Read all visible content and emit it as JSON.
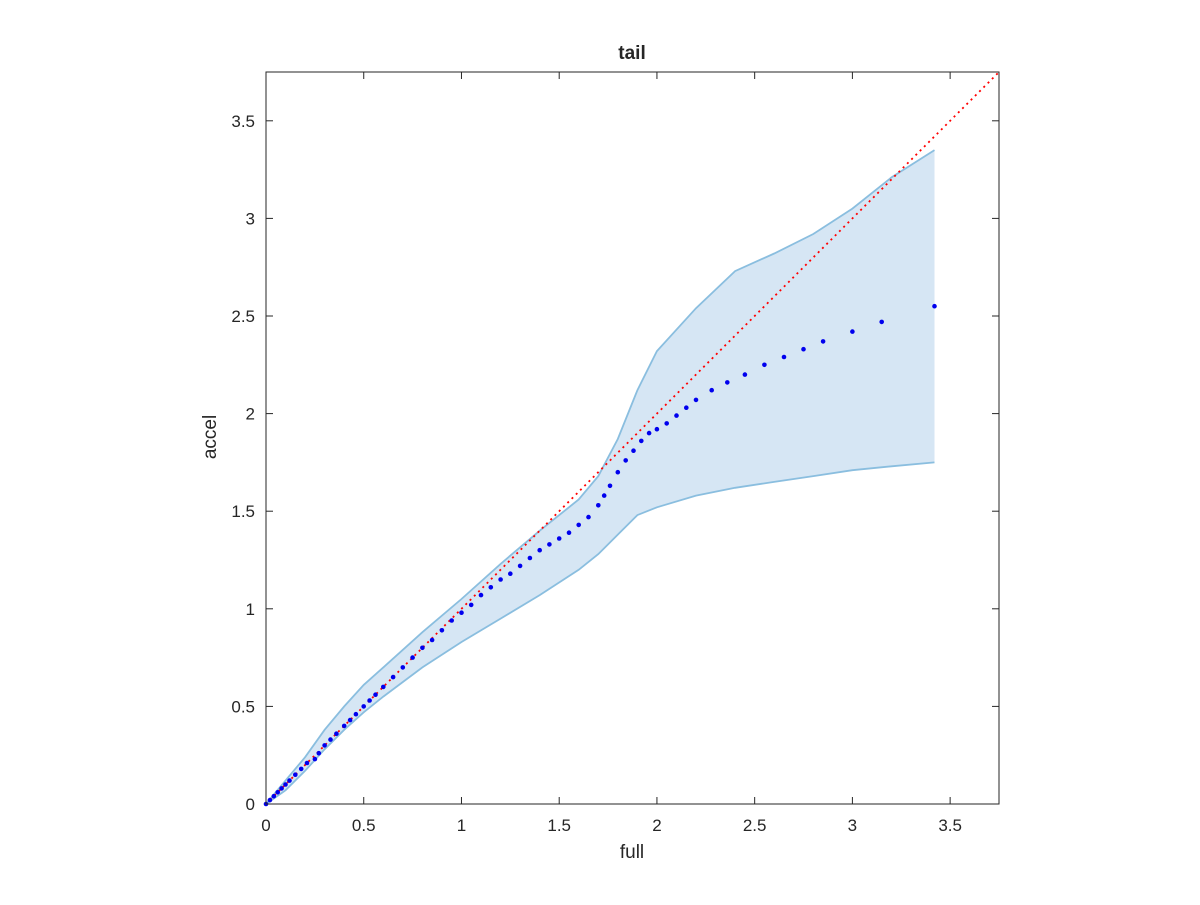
{
  "chart_data": {
    "type": "scatter",
    "title": "tail",
    "xlabel": "full",
    "ylabel": "accel",
    "xlim": [
      0,
      3.75
    ],
    "ylim": [
      0,
      3.75
    ],
    "xticks": [
      0,
      0.5,
      1,
      1.5,
      2,
      2.5,
      3,
      3.5
    ],
    "xtick_labels": [
      "0",
      "0.5",
      "1",
      "1.5",
      "2",
      "2.5",
      "3",
      "3.5"
    ],
    "yticks": [
      0,
      0.5,
      1,
      1.5,
      2,
      2.5,
      3,
      3.5
    ],
    "ytick_labels": [
      "0",
      "0.5",
      "1",
      "1.5",
      "2",
      "2.5",
      "3",
      "3.5"
    ],
    "grid": false,
    "colors": {
      "points": "#0000ee",
      "reference_line": "#ff0000",
      "band_fill": "#d6e6f4",
      "band_edge": "#8abedf",
      "axes": "#262626"
    },
    "reference_line": {
      "style": "dotted",
      "x": [
        0,
        3.75
      ],
      "y": [
        0,
        3.75
      ]
    },
    "band": {
      "x": [
        0.0,
        0.1,
        0.2,
        0.3,
        0.4,
        0.5,
        0.6,
        0.8,
        1.0,
        1.2,
        1.4,
        1.6,
        1.7,
        1.8,
        1.9,
        2.0,
        2.2,
        2.4,
        2.6,
        2.8,
        3.0,
        3.2,
        3.42
      ],
      "upper": [
        0.0,
        0.12,
        0.24,
        0.38,
        0.5,
        0.61,
        0.7,
        0.88,
        1.05,
        1.23,
        1.4,
        1.56,
        1.68,
        1.87,
        2.12,
        2.32,
        2.54,
        2.73,
        2.82,
        2.92,
        3.05,
        3.21,
        3.35
      ],
      "lower": [
        0.0,
        0.07,
        0.17,
        0.28,
        0.38,
        0.47,
        0.55,
        0.7,
        0.83,
        0.95,
        1.07,
        1.2,
        1.28,
        1.38,
        1.48,
        1.52,
        1.58,
        1.62,
        1.65,
        1.68,
        1.71,
        1.73,
        1.75
      ]
    },
    "series": [
      {
        "x": [
          0.0,
          0.02,
          0.04,
          0.06,
          0.08,
          0.1,
          0.12,
          0.15,
          0.18,
          0.21,
          0.25,
          0.27,
          0.3,
          0.33,
          0.36,
          0.4,
          0.43,
          0.46,
          0.5,
          0.53,
          0.56,
          0.6,
          0.65,
          0.7,
          0.75,
          0.8,
          0.85,
          0.9,
          0.95,
          1.0,
          1.05,
          1.1,
          1.15,
          1.2,
          1.25,
          1.3,
          1.35,
          1.4,
          1.45,
          1.5,
          1.55,
          1.6,
          1.65,
          1.7,
          1.73,
          1.76,
          1.8,
          1.84,
          1.88,
          1.92,
          1.96,
          2.0,
          2.05,
          2.1,
          2.15,
          2.2,
          2.28,
          2.36,
          2.45,
          2.55,
          2.65,
          2.75,
          2.85,
          3.0,
          3.15,
          3.42
        ],
        "y": [
          0.0,
          0.02,
          0.04,
          0.06,
          0.08,
          0.1,
          0.12,
          0.15,
          0.18,
          0.21,
          0.23,
          0.26,
          0.3,
          0.33,
          0.36,
          0.4,
          0.43,
          0.46,
          0.5,
          0.53,
          0.56,
          0.6,
          0.65,
          0.7,
          0.75,
          0.8,
          0.84,
          0.89,
          0.94,
          0.98,
          1.02,
          1.07,
          1.11,
          1.15,
          1.18,
          1.22,
          1.26,
          1.3,
          1.33,
          1.36,
          1.39,
          1.43,
          1.47,
          1.53,
          1.58,
          1.63,
          1.7,
          1.76,
          1.81,
          1.86,
          1.9,
          1.92,
          1.95,
          1.99,
          2.03,
          2.07,
          2.12,
          2.16,
          2.2,
          2.25,
          2.29,
          2.33,
          2.37,
          2.42,
          2.47,
          2.55
        ]
      }
    ]
  }
}
